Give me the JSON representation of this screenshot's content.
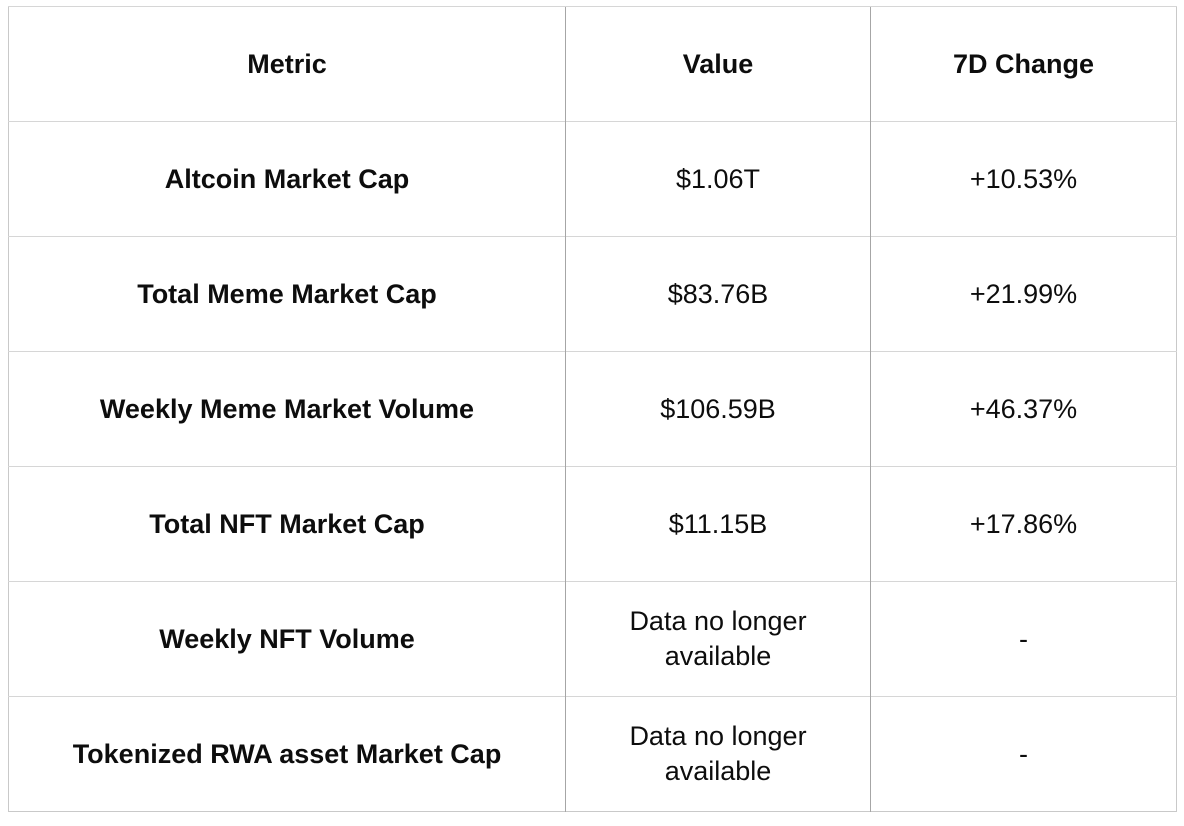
{
  "chart_data": {
    "type": "table",
    "columns": [
      "Metric",
      "Value",
      "7D Change"
    ],
    "rows": [
      {
        "metric": "Altcoin Market Cap",
        "value": "$1.06T",
        "change_7d": "+10.53%"
      },
      {
        "metric": "Total Meme Market Cap",
        "value": "$83.76B",
        "change_7d": "+21.99%"
      },
      {
        "metric": "Weekly Meme Market Volume",
        "value": "$106.59B",
        "change_7d": "+46.37%"
      },
      {
        "metric": "Total NFT Market Cap",
        "value": "$11.15B",
        "change_7d": "+17.86%"
      },
      {
        "metric": "Weekly NFT Volume",
        "value": "Data no longer available",
        "change_7d": "-"
      },
      {
        "metric": "Tokenized RWA asset Market Cap",
        "value": "Data no longer available",
        "change_7d": "-"
      }
    ],
    "layout": {
      "grid": "on",
      "header_row": true
    }
  },
  "colors": {
    "background": "#ffffff",
    "text": "#0d0d0d",
    "border_horizontal": "#d6d6d6",
    "border_vertical": "#a6a6a6",
    "border_outer": "#c9c9c9"
  }
}
